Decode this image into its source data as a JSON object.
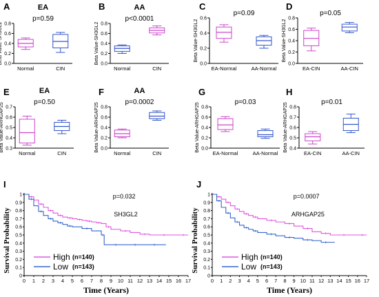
{
  "chart_data": [
    {
      "panel": "A",
      "type": "box",
      "title": "EA",
      "pvalue": "p=0.59",
      "ylabel": "Beta Value-SH3GL2",
      "ylim": [
        0,
        0.8
      ],
      "yticks": [
        "0.0",
        "0.2",
        "0.4",
        "0.6",
        "0.8"
      ],
      "categories": [
        "Normal",
        "CIN"
      ],
      "boxes": [
        {
          "min": 0.28,
          "q1": 0.33,
          "median": 0.4,
          "q3": 0.48,
          "max": 0.51,
          "color": "#cc44cc"
        },
        {
          "min": 0.22,
          "q1": 0.31,
          "median": 0.44,
          "q3": 0.58,
          "max": 0.62,
          "color": "#3355cc"
        }
      ]
    },
    {
      "panel": "B",
      "type": "box",
      "title": "AA",
      "pvalue": "p<0.0001",
      "ylabel": "Beta Value-SH3GL2",
      "ylim": [
        0,
        0.8
      ],
      "yticks": [
        "0.0",
        "0.2",
        "0.4",
        "0.6",
        "0.8"
      ],
      "categories": [
        "Normal",
        "CIN"
      ],
      "boxes": [
        {
          "min": 0.2,
          "q1": 0.24,
          "median": 0.3,
          "q3": 0.35,
          "max": 0.37,
          "color": "#3355cc"
        },
        {
          "min": 0.57,
          "q1": 0.61,
          "median": 0.66,
          "q3": 0.71,
          "max": 0.75,
          "color": "#cc44cc"
        }
      ]
    },
    {
      "panel": "C",
      "type": "box",
      "title": "",
      "pvalue": "p=0.09",
      "ylabel": "Beta Value-SH3GL2",
      "ylim": [
        0,
        0.6
      ],
      "yticks": [
        "0.0",
        "0.2",
        "0.4",
        "0.6"
      ],
      "categories": [
        "EA-Normal",
        "AA-Normal"
      ],
      "boxes": [
        {
          "min": 0.28,
          "q1": 0.33,
          "median": 0.41,
          "q3": 0.48,
          "max": 0.51,
          "color": "#cc44cc"
        },
        {
          "min": 0.2,
          "q1": 0.24,
          "median": 0.3,
          "q3": 0.35,
          "max": 0.37,
          "color": "#3355cc"
        }
      ]
    },
    {
      "panel": "D",
      "type": "box",
      "title": "",
      "pvalue": "p=0.05",
      "ylabel": "Beta Value-SH3GL2",
      "ylim": [
        0,
        0.8
      ],
      "yticks": [
        "0.0",
        "0.2",
        "0.4",
        "0.6",
        "0.8"
      ],
      "categories": [
        "EA-CIN",
        "AA-CIN"
      ],
      "boxes": [
        {
          "min": 0.22,
          "q1": 0.31,
          "median": 0.44,
          "q3": 0.58,
          "max": 0.62,
          "color": "#cc44cc"
        },
        {
          "min": 0.54,
          "q1": 0.57,
          "median": 0.64,
          "q3": 0.69,
          "max": 0.72,
          "color": "#3355cc"
        }
      ]
    },
    {
      "panel": "E",
      "type": "box",
      "title": "EA",
      "pvalue": "p=0.50",
      "ylabel": "Beta Value-ARHGAP25",
      "ylim": [
        0.3,
        0.7
      ],
      "yticks": [
        "0.3",
        "0.4",
        "0.5",
        "0.6",
        "0.7"
      ],
      "categories": [
        "Normal",
        "CIN"
      ],
      "boxes": [
        {
          "min": 0.33,
          "q1": 0.35,
          "median": 0.45,
          "q3": 0.58,
          "max": 0.61,
          "color": "#cc44cc"
        },
        {
          "min": 0.44,
          "q1": 0.47,
          "median": 0.51,
          "q3": 0.55,
          "max": 0.57,
          "color": "#3355cc"
        }
      ]
    },
    {
      "panel": "F",
      "type": "box",
      "title": "AA",
      "pvalue": "p=0.0002",
      "ylabel": "Beta Value-ARHGAP25",
      "ylim": [
        0,
        0.8
      ],
      "yticks": [
        "0.0",
        "0.2",
        "0.4",
        "0.6",
        "0.8"
      ],
      "categories": [
        "Normal",
        "CIN"
      ],
      "boxes": [
        {
          "min": 0.2,
          "q1": 0.22,
          "median": 0.28,
          "q3": 0.35,
          "max": 0.37,
          "color": "#cc44cc"
        },
        {
          "min": 0.54,
          "q1": 0.57,
          "median": 0.62,
          "q3": 0.69,
          "max": 0.72,
          "color": "#3355cc"
        }
      ]
    },
    {
      "panel": "G",
      "type": "box",
      "title": "",
      "pvalue": "p=0.03",
      "ylabel": "Beta Value-ARHGAP25",
      "ylim": [
        0,
        0.8
      ],
      "yticks": [
        "0.0",
        "0.2",
        "0.4",
        "0.6",
        "0.8"
      ],
      "categories": [
        "EA-Normal",
        "AA-Normal"
      ],
      "boxes": [
        {
          "min": 0.32,
          "q1": 0.36,
          "median": 0.45,
          "q3": 0.57,
          "max": 0.61,
          "color": "#cc44cc"
        },
        {
          "min": 0.19,
          "q1": 0.22,
          "median": 0.26,
          "q3": 0.34,
          "max": 0.37,
          "color": "#3355cc"
        }
      ]
    },
    {
      "panel": "H",
      "type": "box",
      "title": "",
      "pvalue": "p=0.01",
      "ylabel": "Beta Value-ARHGAP25",
      "ylim": [
        0.4,
        0.8
      ],
      "yticks": [
        "0.4",
        "0.5",
        "0.6",
        "0.7",
        "0.8"
      ],
      "categories": [
        "EA-CIN",
        "AA-CIN"
      ],
      "boxes": [
        {
          "min": 0.44,
          "q1": 0.47,
          "median": 0.51,
          "q3": 0.54,
          "max": 0.56,
          "color": "#cc44cc"
        },
        {
          "min": 0.55,
          "q1": 0.57,
          "median": 0.63,
          "q3": 0.69,
          "max": 0.73,
          "color": "#3355cc"
        }
      ]
    },
    {
      "panel": "I",
      "type": "line",
      "subtype": "kaplan-meier",
      "pvalue": "p=0.032",
      "gene": "SH3GL2",
      "ylabel": "Survival Probability",
      "xlabel": "Time (Years)",
      "xlim": [
        0,
        17
      ],
      "ylim": [
        0,
        1
      ],
      "xticks": [
        "0",
        "1",
        "2",
        "3",
        "4",
        "5",
        "6",
        "7",
        "8",
        "9",
        "10",
        "11",
        "12",
        "13",
        "14",
        "15",
        "16",
        "17"
      ],
      "yticks": [
        "0",
        "0.1",
        "0.2",
        "0.3",
        "0.4",
        "0.5",
        "0.6",
        "0.7",
        "0.8",
        "0.9",
        "1"
      ],
      "legend_position": "bottom-left",
      "series": [
        {
          "name": "High",
          "n": "(n=140)",
          "color": "#e055e0",
          "x": [
            0,
            0.5,
            1,
            1.5,
            2,
            2.5,
            3,
            3.5,
            4,
            4.5,
            5,
            5.5,
            6,
            6.5,
            7,
            7.5,
            8,
            8.5,
            9,
            10,
            11,
            12,
            13,
            14,
            15,
            16,
            17
          ],
          "y": [
            1,
            0.97,
            0.93,
            0.88,
            0.84,
            0.8,
            0.77,
            0.74,
            0.72,
            0.71,
            0.7,
            0.69,
            0.68,
            0.67,
            0.66,
            0.65,
            0.64,
            0.6,
            0.57,
            0.55,
            0.53,
            0.51,
            0.5,
            0.5,
            0.5,
            0.5,
            0.5
          ]
        },
        {
          "name": "Low",
          "n": "(n=143)",
          "color": "#3366cc",
          "x": [
            0,
            0.5,
            1,
            1.5,
            2,
            2.5,
            3,
            3.5,
            4,
            4.5,
            5,
            6,
            7,
            8,
            8.3,
            9,
            10,
            11,
            12,
            13,
            14,
            14.7
          ],
          "y": [
            1,
            0.94,
            0.86,
            0.79,
            0.74,
            0.7,
            0.67,
            0.65,
            0.63,
            0.61,
            0.6,
            0.58,
            0.55,
            0.5,
            0.38,
            0.38,
            0.38,
            0.38,
            0.38,
            0.38,
            0.38,
            0.38
          ]
        }
      ]
    },
    {
      "panel": "J",
      "type": "line",
      "subtype": "kaplan-meier",
      "pvalue": "p=0.0007",
      "gene": "ARHGAP25",
      "ylabel": "Survival Probability",
      "xlabel": "Time (Years)",
      "xlim": [
        0,
        17
      ],
      "ylim": [
        0,
        1
      ],
      "xticks": [
        "0",
        "1",
        "2",
        "3",
        "4",
        "5",
        "6",
        "7",
        "8",
        "9",
        "10",
        "11",
        "12",
        "13",
        "14",
        "15",
        "16",
        "17"
      ],
      "yticks": [
        "0",
        "0.1",
        "0.2",
        "0.3",
        "0.4",
        "0.5",
        "0.6",
        "0.7",
        "0.8",
        "0.9",
        "1"
      ],
      "legend_position": "bottom-left",
      "series": [
        {
          "name": "High",
          "n": "(n=140)",
          "color": "#e055e0",
          "x": [
            0,
            0.5,
            1,
            1.5,
            2,
            2.5,
            3,
            3.5,
            4,
            4.5,
            5,
            6,
            7,
            8,
            9,
            10,
            11,
            12,
            13,
            14,
            15,
            16,
            17
          ],
          "y": [
            1,
            0.97,
            0.94,
            0.9,
            0.86,
            0.82,
            0.79,
            0.76,
            0.74,
            0.72,
            0.7,
            0.68,
            0.66,
            0.64,
            0.61,
            0.58,
            0.54,
            0.52,
            0.5,
            0.5,
            0.5,
            0.5,
            0.5
          ]
        },
        {
          "name": "Low",
          "n": "(n=143)",
          "color": "#3366cc",
          "x": [
            0,
            0.5,
            1,
            1.5,
            2,
            2.5,
            3,
            3.5,
            4,
            4.5,
            5,
            6,
            7,
            8,
            9,
            10,
            11,
            12,
            13,
            13.5
          ],
          "y": [
            1,
            0.92,
            0.84,
            0.77,
            0.71,
            0.66,
            0.62,
            0.59,
            0.57,
            0.55,
            0.53,
            0.51,
            0.49,
            0.47,
            0.46,
            0.44,
            0.43,
            0.41,
            0.41,
            0.41
          ]
        }
      ]
    }
  ]
}
